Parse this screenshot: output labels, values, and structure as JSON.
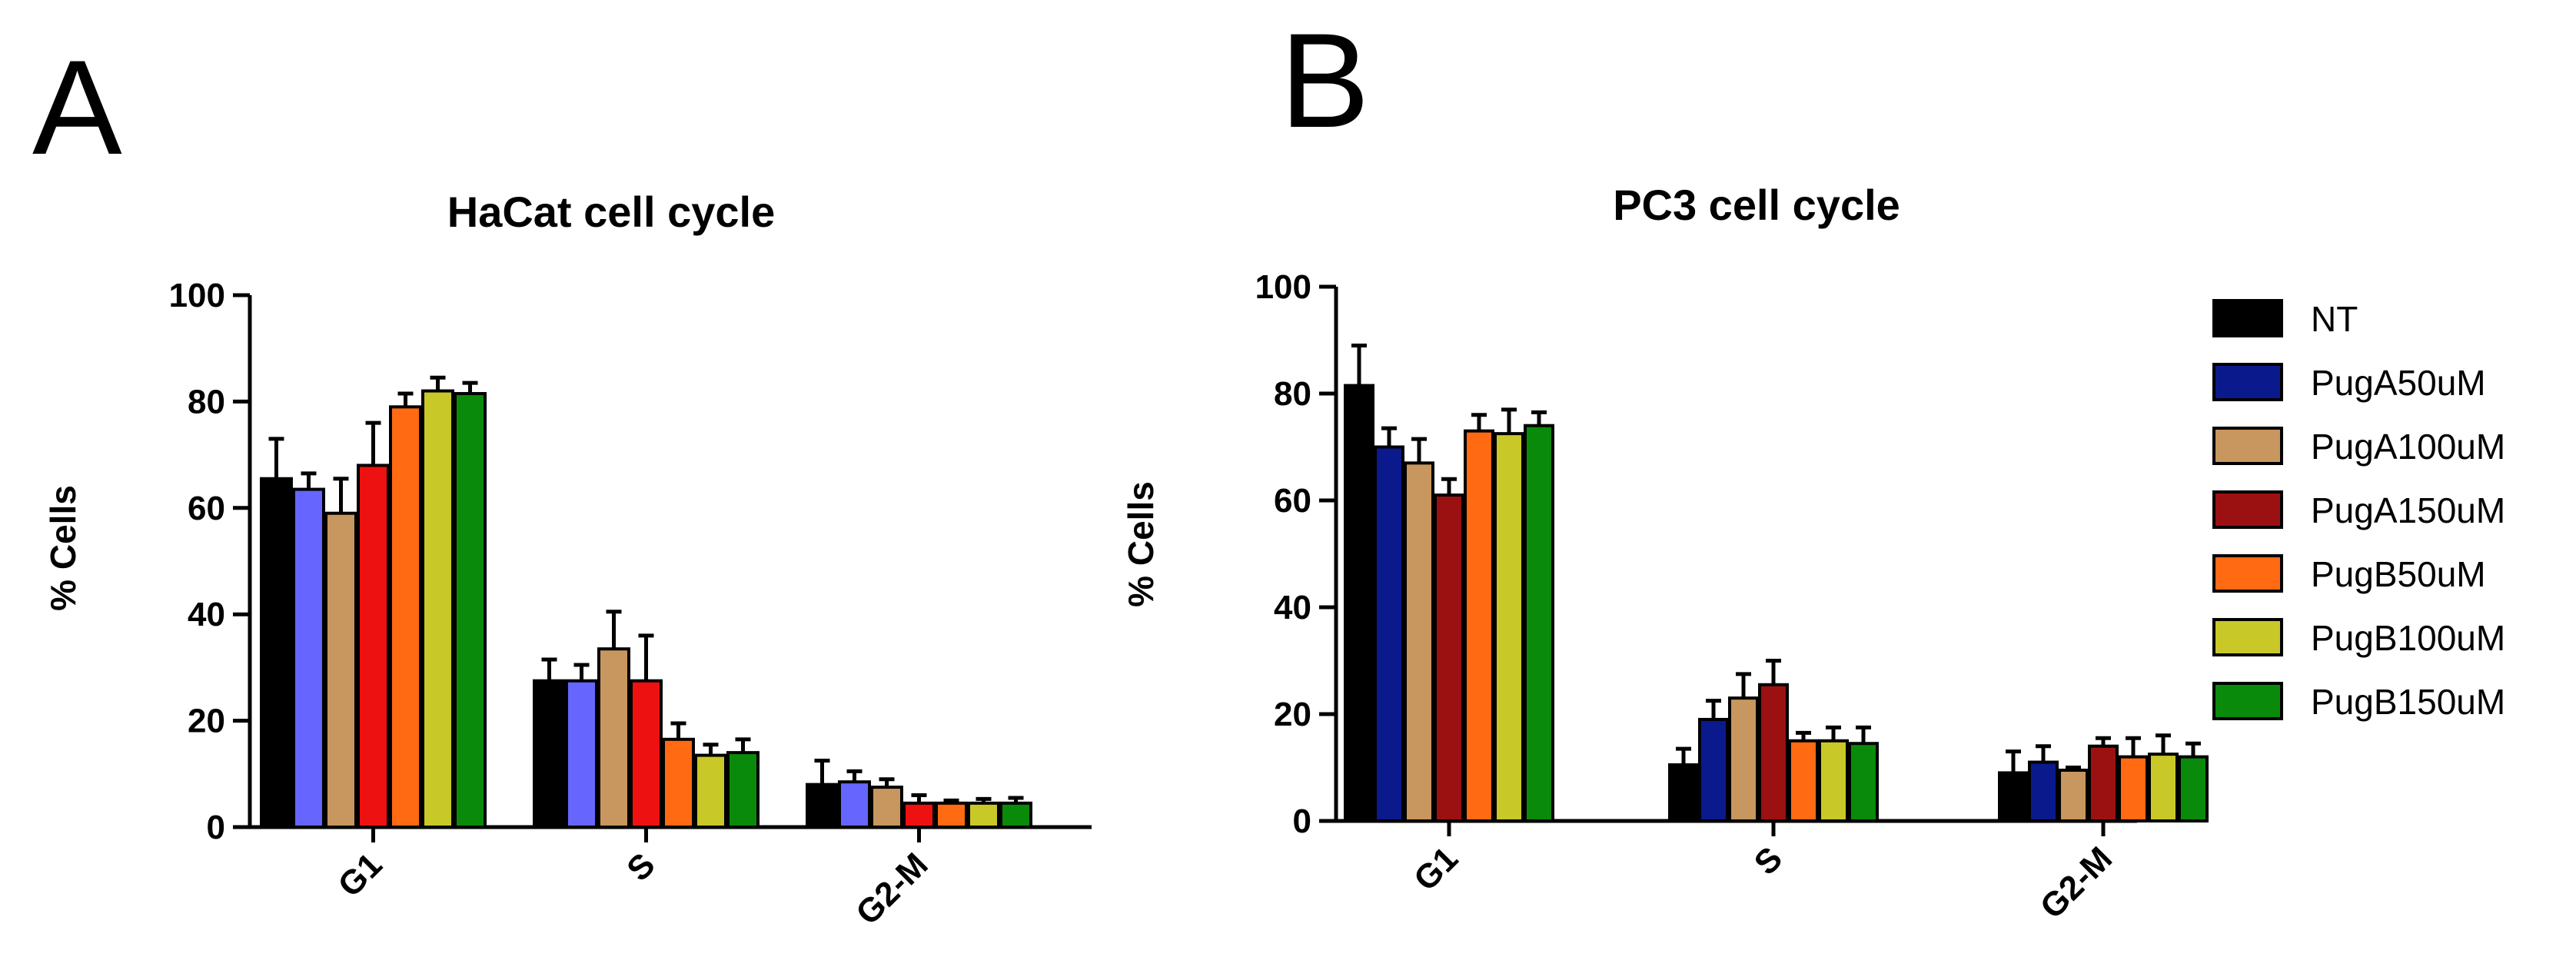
{
  "panels": [
    {
      "letter": "A"
    },
    {
      "letter": "B"
    }
  ],
  "legend": {
    "entries": [
      "NT",
      "PugA50uM",
      "PugA100uM",
      "PugA150uM",
      "PugB50uM",
      "PugB100uM",
      "PugB150uM"
    ]
  },
  "chart_data": [
    {
      "type": "bar",
      "panel": "A",
      "title": "HaCat cell cycle",
      "xlabel": "",
      "ylabel": "% Cells",
      "ylim": [
        0,
        100
      ],
      "yticks": [
        0,
        20,
        40,
        60,
        80,
        100
      ],
      "categories": [
        "G1",
        "S",
        "G2-M"
      ],
      "series": [
        {
          "name": "NT",
          "color": "#000000",
          "values": [
            65.5,
            27.5,
            8.0
          ],
          "errors": [
            7.5,
            4.0,
            4.5
          ]
        },
        {
          "name": "PugA50uM",
          "color": "#6666ff",
          "values": [
            63.5,
            27.5,
            8.5
          ],
          "errors": [
            3.0,
            3.0,
            2.0
          ]
        },
        {
          "name": "PugA100uM",
          "color": "#c8965f",
          "values": [
            59.0,
            33.5,
            7.5
          ],
          "errors": [
            6.5,
            7.0,
            1.5
          ]
        },
        {
          "name": "PugA150uM",
          "color": "#ee1111",
          "values": [
            68.0,
            27.5,
            4.5
          ],
          "errors": [
            8.0,
            8.5,
            1.5
          ]
        },
        {
          "name": "PugB50uM",
          "color": "#ff6a13",
          "values": [
            79.0,
            16.5,
            4.5
          ],
          "errors": [
            2.5,
            3.0,
            0.5
          ]
        },
        {
          "name": "PugB100uM",
          "color": "#c8c828",
          "values": [
            82.0,
            13.5,
            4.5
          ],
          "errors": [
            2.5,
            2.0,
            0.8
          ]
        },
        {
          "name": "PugB150uM",
          "color": "#0a8a0a",
          "values": [
            81.5,
            14.0,
            4.5
          ],
          "errors": [
            2.0,
            2.5,
            1.0
          ]
        }
      ]
    },
    {
      "type": "bar",
      "panel": "B",
      "title": "PC3 cell cycle",
      "xlabel": "",
      "ylabel": "% Cells",
      "ylim": [
        0,
        100
      ],
      "yticks": [
        0,
        20,
        40,
        60,
        80,
        100
      ],
      "categories": [
        "G1",
        "S",
        "G2-M"
      ],
      "series": [
        {
          "name": "NT",
          "color": "#000000",
          "values": [
            81.5,
            10.5,
            9.0
          ],
          "errors": [
            7.5,
            3.0,
            4.0
          ]
        },
        {
          "name": "PugA50uM",
          "color": "#0a1a8c",
          "values": [
            70.0,
            19.0,
            11.0
          ],
          "errors": [
            3.5,
            3.5,
            3.0
          ]
        },
        {
          "name": "PugA100uM",
          "color": "#c8965f",
          "values": [
            67.0,
            23.0,
            9.5
          ],
          "errors": [
            4.5,
            4.5,
            0.5
          ]
        },
        {
          "name": "PugA150uM",
          "color": "#9b1111",
          "values": [
            61.0,
            25.5,
            14.0
          ],
          "errors": [
            3.0,
            4.5,
            1.5
          ]
        },
        {
          "name": "PugB50uM",
          "color": "#ff6a13",
          "values": [
            73.0,
            15.0,
            12.0
          ],
          "errors": [
            3.0,
            1.5,
            3.5
          ]
        },
        {
          "name": "PugB100uM",
          "color": "#c8c828",
          "values": [
            72.5,
            15.0,
            12.5
          ],
          "errors": [
            4.5,
            2.5,
            3.5
          ]
        },
        {
          "name": "PugB150uM",
          "color": "#0a8a0a",
          "values": [
            74.0,
            14.5,
            12.0
          ],
          "errors": [
            2.5,
            3.0,
            2.5
          ]
        }
      ]
    }
  ]
}
